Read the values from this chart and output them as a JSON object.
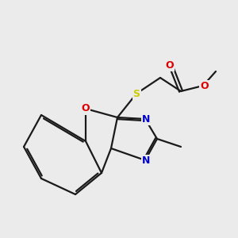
{
  "bg_color": "#ebebeb",
  "bond_color": "#1a1a1a",
  "N_color": "#0000cc",
  "O_color": "#dd0000",
  "S_color": "#cccc00",
  "line_width": 1.6,
  "dbo": 0.07,
  "figsize": [
    3.0,
    3.0
  ],
  "dpi": 100,
  "xlim": [
    0,
    10
  ],
  "ylim": [
    0,
    10
  ]
}
